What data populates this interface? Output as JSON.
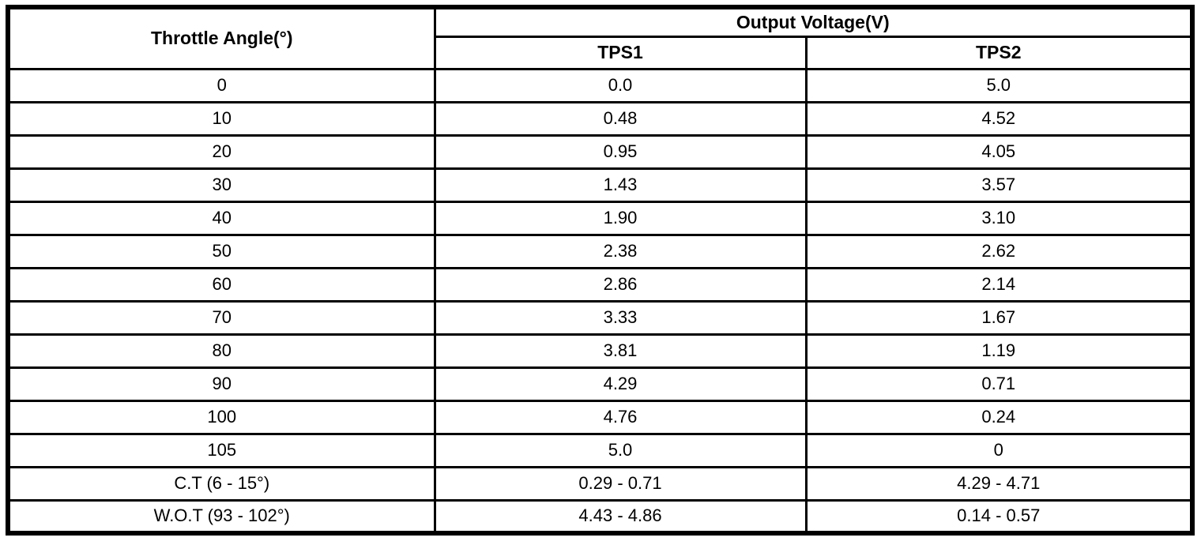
{
  "table": {
    "col1_header": "Throttle Angle(°)",
    "group_header": "Output Voltage(V)",
    "sub_headers": [
      "TPS1",
      "TPS2"
    ],
    "rows": [
      [
        "0",
        "0.0",
        "5.0"
      ],
      [
        "10",
        "0.48",
        "4.52"
      ],
      [
        "20",
        "0.95",
        "4.05"
      ],
      [
        "30",
        "1.43",
        "3.57"
      ],
      [
        "40",
        "1.90",
        "3.10"
      ],
      [
        "50",
        "2.38",
        "2.62"
      ],
      [
        "60",
        "2.86",
        "2.14"
      ],
      [
        "70",
        "3.33",
        "1.67"
      ],
      [
        "80",
        "3.81",
        "1.19"
      ],
      [
        "90",
        "4.29",
        "0.71"
      ],
      [
        "100",
        "4.76",
        "0.24"
      ],
      [
        "105",
        "5.0",
        "0"
      ],
      [
        "C.T (6 - 15°)",
        "0.29 - 0.71",
        "4.29 - 4.71"
      ],
      [
        "W.O.T (93 - 102°)",
        "4.43 - 4.86",
        "0.14 - 0.57"
      ]
    ]
  },
  "colors": {
    "border": "#000000",
    "text": "#000000",
    "background": "#ffffff"
  },
  "chart_data": {
    "type": "table",
    "title": "Output Voltage(V)",
    "columns": [
      "Throttle Angle(°)",
      "TPS1",
      "TPS2"
    ],
    "throttle_angles": [
      0,
      10,
      20,
      30,
      40,
      50,
      60,
      70,
      80,
      90,
      100,
      105
    ],
    "series": [
      {
        "name": "TPS1",
        "values": [
          0.0,
          0.48,
          0.95,
          1.43,
          1.9,
          2.38,
          2.86,
          3.33,
          3.81,
          4.29,
          4.76,
          5.0
        ]
      },
      {
        "name": "TPS2",
        "values": [
          5.0,
          4.52,
          4.05,
          3.57,
          3.1,
          2.62,
          2.14,
          1.67,
          1.19,
          0.71,
          0.24,
          0
        ]
      }
    ],
    "special_rows": [
      {
        "label": "C.T (6 - 15°)",
        "TPS1": "0.29 - 0.71",
        "TPS2": "4.29 - 4.71"
      },
      {
        "label": "W.O.T (93 - 102°)",
        "TPS1": "4.43 - 4.86",
        "TPS2": "0.14 - 0.57"
      }
    ]
  }
}
